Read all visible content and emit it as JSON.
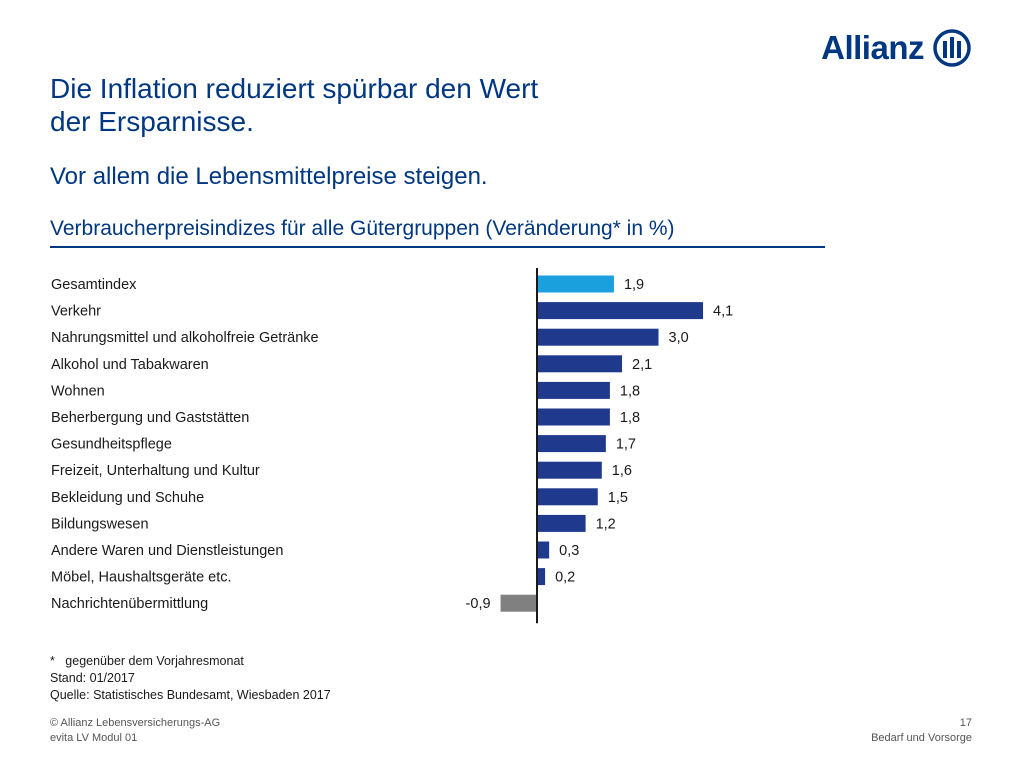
{
  "header": {
    "brand": "Allianz",
    "title_line1": "Die Inflation reduziert spürbar den Wert",
    "title_line2": "der Ersparnisse.",
    "subtitle": "Vor allem die Lebensmittelpreise steigen."
  },
  "chart_data": {
    "type": "bar",
    "orientation": "horizontal",
    "title": "Verbraucherpreisindizes für alle Gütergruppen (Veränderung* in %)",
    "categories": [
      "Gesamtindex",
      "Verkehr",
      "Nahrungsmittel und alkoholfreie Getränke",
      "Alkohol und Tabakwaren",
      "Wohnen",
      "Beherbergung und Gaststätten",
      "Gesundheitspflege",
      "Freizeit, Unterhaltung und Kultur",
      "Bekleidung und Schuhe",
      "Bildungswesen",
      "Andere Waren und Dienstleistungen",
      "Möbel, Haushaltsgeräte etc.",
      "Nachrichtenübermittlung"
    ],
    "values": [
      1.9,
      4.1,
      3.0,
      2.1,
      1.8,
      1.8,
      1.7,
      1.6,
      1.5,
      1.2,
      0.3,
      0.2,
      -0.9
    ],
    "value_labels": [
      "1,9",
      "4,1",
      "3,0",
      "2,1",
      "1,8",
      "1,8",
      "1,7",
      "1,6",
      "1,5",
      "1,2",
      "0,3",
      "0,2",
      "-0,9"
    ],
    "colors": {
      "total": "#1aa0dc",
      "positive": "#1f3a8c",
      "negative": "#808080",
      "axis": "#1a1a1a"
    },
    "grid": false
  },
  "footnotes": {
    "asterisk": "*",
    "note": "gegenüber dem Vorjahresmonat",
    "status": "Stand: 01/2017",
    "source": "Quelle: Statistisches Bundesamt, Wiesbaden 2017"
  },
  "footer": {
    "copyright": "© Allianz Lebensversicherungs-AG",
    "module": "evita LV Modul 01",
    "page_number": "17",
    "section": "Bedarf und Vorsorge"
  }
}
